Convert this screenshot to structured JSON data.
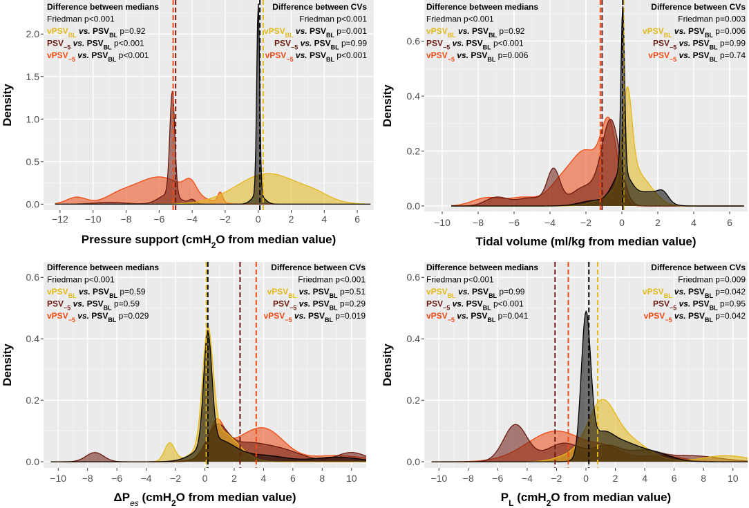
{
  "figure": {
    "colors": {
      "PSV_BL": "#000000",
      "vPSV_BL": "#e3b81b",
      "PSV_-5": "#6b1a10",
      "vPSV_-5": "#ef4a14"
    },
    "series_order": [
      "vPSV_-5",
      "PSV_-5",
      "vPSV_BL",
      "PSV_BL"
    ]
  },
  "chart_data": [
    {
      "type": "area",
      "id": "ps",
      "xlabel_parts": [
        [
          "Pressure support (cmH",
          "n"
        ],
        [
          "2",
          "sub"
        ],
        [
          "O from median value)",
          "n"
        ]
      ],
      "ylabel": "Density",
      "xlim": [
        -13,
        7
      ],
      "ylim": [
        -0.07,
        2.4
      ],
      "xticks": [
        -12,
        -10,
        -8,
        -6,
        -4,
        -2,
        0,
        2,
        4,
        6
      ],
      "yticks": [
        0.0,
        0.5,
        1.0,
        1.5,
        2.0
      ],
      "ytick_labels": [
        "0.0",
        "0.5",
        "1.0",
        "1.5",
        "2.0"
      ],
      "series": [
        {
          "name": "vPSV_-5",
          "median": -5.15,
          "range": [
            -12.3,
            6.8
          ],
          "comps": [
            [
              0.32,
              -6.0,
              1.6
            ],
            [
              0.14,
              -4.1,
              0.35
            ],
            [
              0.12,
              -2.3,
              0.15
            ],
            [
              0.08,
              -11.0,
              0.6
            ],
            [
              0.06,
              -8.5,
              0.8
            ]
          ]
        },
        {
          "name": "PSV_-5",
          "median": -5.0,
          "range": [
            -12.3,
            6.8
          ],
          "comps": [
            [
              1.22,
              -5.2,
              0.15
            ],
            [
              0.12,
              -5.4,
              0.6
            ],
            [
              0.05,
              -4.0,
              0.2
            ],
            [
              0.02,
              -9.0,
              1.0
            ]
          ]
        },
        {
          "name": "vPSV_BL",
          "median": 0.3,
          "range": [
            -12.3,
            6.8
          ],
          "comps": [
            [
              0.36,
              0.6,
              1.9
            ],
            [
              0.06,
              3.5,
              0.9
            ]
          ]
        },
        {
          "name": "PSV_BL",
          "median": 0.1,
          "range": [
            -12.3,
            6.8
          ],
          "comps": [
            [
              2.25,
              0.0,
              0.09
            ],
            [
              0.12,
              0.0,
              0.35
            ]
          ]
        }
      ],
      "annotations": {
        "medians": {
          "title": "Difference between medians",
          "friedman": "Friedman p<0.001",
          "rows": [
            {
              "name": "vPSV_BL",
              "a": "vPSV",
              "a_sub": "BL",
              "p": "p=0.92"
            },
            {
              "name": "PSV_-5",
              "a": "PSV",
              "a_sub": "−5",
              "p": "p<0.001"
            },
            {
              "name": "vPSV_-5",
              "a": "vPSV",
              "a_sub": "−5",
              "p": "p<0.001"
            }
          ]
        },
        "cvs": {
          "title": "Difference between CVs",
          "friedman": "Friedman p<0.001",
          "rows": [
            {
              "name": "vPSV_BL",
              "a": "vPSV",
              "a_sub": "BL",
              "p": "p=0.001"
            },
            {
              "name": "PSV_-5",
              "a": "PSV",
              "a_sub": "−5",
              "p": "p=0.99"
            },
            {
              "name": "vPSV_-5",
              "a": "vPSV",
              "a_sub": "−5",
              "p": "p<0.001"
            }
          ]
        },
        "vs": "vs.",
        "ref": "PSV",
        "ref_sub": "BL"
      }
    },
    {
      "type": "area",
      "id": "vt",
      "xlabel_parts": [
        [
          "Tidal volume (ml/kg from median value)",
          "n"
        ]
      ],
      "ylabel": "Density",
      "xlim": [
        -11,
        7
      ],
      "ylim": [
        -0.02,
        0.75
      ],
      "xticks": [
        -10,
        -8,
        -6,
        -4,
        -2,
        0,
        2,
        4,
        6
      ],
      "yticks": [
        0.0,
        0.2,
        0.4,
        0.6
      ],
      "ytick_labels": [
        "0.0",
        "0.2",
        "0.4",
        "0.6"
      ],
      "series": [
        {
          "name": "vPSV_-5",
          "median": -1.2,
          "range": [
            -9.5,
            6.8
          ],
          "comps": [
            [
              0.28,
              -0.7,
              0.45
            ],
            [
              0.17,
              -1.9,
              0.7
            ],
            [
              0.1,
              -3.2,
              0.8
            ],
            [
              0.03,
              -7.5,
              0.8
            ],
            [
              0.03,
              -5.5,
              0.8
            ]
          ]
        },
        {
          "name": "PSV_-5",
          "median": -1.1,
          "range": [
            -9.5,
            6.8
          ],
          "comps": [
            [
              0.3,
              -0.6,
              0.5
            ],
            [
              0.12,
              -3.8,
              0.35
            ],
            [
              0.07,
              -2.0,
              0.8
            ],
            [
              0.03,
              -7.0,
              0.6
            ],
            [
              0.03,
              -5.0,
              0.9
            ]
          ]
        },
        {
          "name": "vPSV_BL",
          "median": 0.1,
          "range": [
            -9.5,
            6.8
          ],
          "comps": [
            [
              0.3,
              0.3,
              0.25
            ],
            [
              0.12,
              0.5,
              0.6
            ],
            [
              0.05,
              1.5,
              0.6
            ],
            [
              0.03,
              -0.7,
              0.8
            ]
          ]
        },
        {
          "name": "PSV_BL",
          "median": 0.05,
          "range": [
            -9.5,
            6.8
          ],
          "comps": [
            [
              0.6,
              0.05,
              0.1
            ],
            [
              0.12,
              0.0,
              0.5
            ],
            [
              0.05,
              1.5,
              0.7
            ],
            [
              0.03,
              2.3,
              0.3
            ],
            [
              0.02,
              -1.5,
              0.8
            ]
          ]
        }
      ],
      "annotations": {
        "medians": {
          "title": "Difference between medians",
          "friedman": "Friedman p<0.001",
          "rows": [
            {
              "name": "vPSV_BL",
              "a": "vPSV",
              "a_sub": "BL",
              "p": "p=0.92"
            },
            {
              "name": "PSV_-5",
              "a": "PSV",
              "a_sub": "−5",
              "p": "p<0.001"
            },
            {
              "name": "vPSV_-5",
              "a": "vPSV",
              "a_sub": "−5",
              "p": "p=0.006"
            }
          ]
        },
        "cvs": {
          "title": "Difference between CVs",
          "friedman": "Friedman p=0.003",
          "rows": [
            {
              "name": "vPSV_BL",
              "a": "vPSV",
              "a_sub": "BL",
              "p": "p=0.006"
            },
            {
              "name": "PSV_-5",
              "a": "PSV",
              "a_sub": "−5",
              "p": "p=0.99"
            },
            {
              "name": "vPSV_-5",
              "a": "vPSV",
              "a_sub": "−5",
              "p": "p=0.74"
            }
          ]
        },
        "vs": "vs.",
        "ref": "PSV",
        "ref_sub": "BL"
      }
    },
    {
      "type": "area",
      "id": "dpes",
      "xlabel_parts": [
        [
          "ΔP",
          "n"
        ],
        [
          "es",
          "subi"
        ],
        [
          " (cmH",
          "n"
        ],
        [
          "2",
          "sub"
        ],
        [
          "O from median value)",
          "n"
        ]
      ],
      "ylabel": "Density",
      "xlim": [
        -11,
        11
      ],
      "ylim": [
        -0.02,
        0.65
      ],
      "xticks": [
        -10,
        -8,
        -6,
        -4,
        -2,
        0,
        2,
        4,
        6,
        8,
        10
      ],
      "yticks": [
        0.0,
        0.2,
        0.4,
        0.6
      ],
      "ytick_labels": [
        "0.0",
        "0.2",
        "0.4",
        "0.6"
      ],
      "series": [
        {
          "name": "vPSV_-5",
          "median": 3.5,
          "range": [
            -10.5,
            11
          ],
          "comps": [
            [
              0.1,
              0.8,
              0.5
            ],
            [
              0.09,
              4.2,
              1.3
            ],
            [
              0.05,
              2.0,
              1.5
            ],
            [
              0.02,
              9.0,
              2.0
            ]
          ]
        },
        {
          "name": "PSV_-5",
          "median": 2.4,
          "range": [
            -10.5,
            11
          ],
          "comps": [
            [
              0.1,
              0.8,
              0.7
            ],
            [
              0.05,
              2.5,
              1.3
            ],
            [
              0.04,
              5.0,
              1.5
            ],
            [
              0.03,
              -7.5,
              0.6
            ],
            [
              0.03,
              10.0,
              1.0
            ]
          ]
        },
        {
          "name": "vPSV_BL",
          "median": 0.1,
          "range": [
            -10.5,
            11
          ],
          "comps": [
            [
              0.36,
              0.2,
              0.35
            ],
            [
              0.06,
              -2.4,
              0.35
            ],
            [
              0.1,
              1.0,
              1.2
            ]
          ]
        },
        {
          "name": "PSV_BL",
          "median": 0.2,
          "range": [
            -10.5,
            11
          ],
          "comps": [
            [
              0.36,
              0.2,
              0.28
            ],
            [
              0.07,
              0.8,
              1.2
            ],
            [
              0.02,
              4.0,
              1.5
            ],
            [
              0.015,
              9.0,
              1.5
            ]
          ]
        }
      ],
      "annotations": {
        "medians": {
          "title": "Difference between medians",
          "friedman": "Friedman p<0.001",
          "rows": [
            {
              "name": "vPSV_BL",
              "a": "vPSV",
              "a_sub": "BL",
              "p": "p=0.59"
            },
            {
              "name": "PSV_-5",
              "a": "PSV",
              "a_sub": "−5",
              "p": "p=0.59"
            },
            {
              "name": "vPSV_-5",
              "a": "vPSV",
              "a_sub": "−5",
              "p": "p=0.029"
            }
          ]
        },
        "cvs": {
          "title": "Difference between CVs",
          "friedman": "Friedman p<0.001",
          "rows": [
            {
              "name": "vPSV_BL",
              "a": "vPSV",
              "a_sub": "BL",
              "p": "p=0.51"
            },
            {
              "name": "PSV_-5",
              "a": "PSV",
              "a_sub": "−5",
              "p": "p=0.29"
            },
            {
              "name": "vPSV_-5",
              "a": "vPSV",
              "a_sub": "−5",
              "p": "p=0.019"
            }
          ]
        },
        "vs": "vs.",
        "ref": "PSV",
        "ref_sub": "BL"
      }
    },
    {
      "type": "area",
      "id": "pl",
      "xlabel_parts": [
        [
          "P",
          "n"
        ],
        [
          "L",
          "sub"
        ],
        [
          " (cmH",
          "n"
        ],
        [
          "2",
          "sub"
        ],
        [
          "O from median value)",
          "n"
        ]
      ],
      "ylabel": "Density",
      "xlim": [
        -11,
        11
      ],
      "ylim": [
        -0.02,
        0.65
      ],
      "xticks": [
        -10,
        -8,
        -6,
        -4,
        -2,
        0,
        2,
        4,
        6,
        8,
        10
      ],
      "yticks": [
        0.0,
        0.2,
        0.4,
        0.6
      ],
      "ytick_labels": [
        "0.0",
        "0.2",
        "0.4",
        "0.6"
      ],
      "series": [
        {
          "name": "vPSV_-5",
          "median": -1.2,
          "range": [
            -10.5,
            11
          ],
          "comps": [
            [
              0.1,
              -2.0,
              2.0
            ],
            [
              0.03,
              1.5,
              1.0
            ],
            [
              0.02,
              5.0,
              1.5
            ]
          ]
        },
        {
          "name": "PSV_-5",
          "median": -2.1,
          "range": [
            -10.5,
            11
          ],
          "comps": [
            [
              0.12,
              -4.8,
              0.8
            ],
            [
              0.06,
              -1.5,
              1.2
            ],
            [
              0.05,
              1.5,
              1.0
            ],
            [
              0.03,
              4.0,
              1.0
            ],
            [
              0.02,
              7.0,
              2.0
            ]
          ]
        },
        {
          "name": "vPSV_BL",
          "median": 0.8,
          "range": [
            -10.5,
            11
          ],
          "comps": [
            [
              0.15,
              1.0,
              0.9
            ],
            [
              0.08,
              2.5,
              1.5
            ],
            [
              0.02,
              9.5,
              1.5
            ],
            [
              0.02,
              -1.0,
              1.0
            ]
          ]
        },
        {
          "name": "PSV_BL",
          "median": 0.2,
          "range": [
            -10.5,
            11
          ],
          "comps": [
            [
              0.45,
              0.0,
              0.32
            ],
            [
              0.08,
              1.0,
              0.8
            ],
            [
              0.05,
              2.5,
              1.0
            ],
            [
              0.03,
              4.5,
              1.2
            ]
          ]
        }
      ],
      "annotations": {
        "medians": {
          "title": "Difference between medians",
          "friedman": "Friedman p<0.001",
          "rows": [
            {
              "name": "vPSV_BL",
              "a": "vPSV",
              "a_sub": "BL",
              "p": "p=0.99"
            },
            {
              "name": "PSV_-5",
              "a": "PSV",
              "a_sub": "−5",
              "p": "p<0.001"
            },
            {
              "name": "vPSV_-5",
              "a": "vPSV",
              "a_sub": "−5",
              "p": "p=0.041"
            }
          ]
        },
        "cvs": {
          "title": "Difference between CVs",
          "friedman": "Friedman p=0.009",
          "rows": [
            {
              "name": "vPSV_BL",
              "a": "vPSV",
              "a_sub": "BL",
              "p": "p=0.042"
            },
            {
              "name": "PSV_-5",
              "a": "PSV",
              "a_sub": "−5",
              "p": "p=0.95"
            },
            {
              "name": "vPSV_-5",
              "a": "vPSV",
              "a_sub": "−5",
              "p": "p=0.042"
            }
          ]
        },
        "vs": "vs.",
        "ref": "PSV",
        "ref_sub": "BL"
      }
    }
  ]
}
